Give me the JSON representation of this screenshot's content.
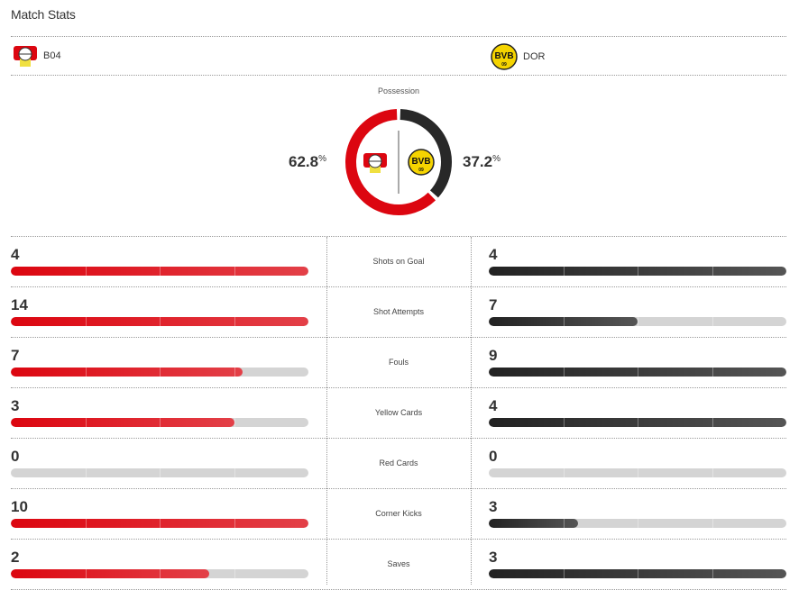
{
  "header": {
    "title": "Match Stats"
  },
  "teams": {
    "home": {
      "abbr": "B04",
      "logo_icon": "bayer-leverkusen-crest",
      "color": "#dc0610"
    },
    "away": {
      "abbr": "DOR",
      "logo_icon": "bvb-crest",
      "color": "#222222",
      "logo_text": "BVB 09"
    }
  },
  "possession": {
    "label": "Possession",
    "home": 62.8,
    "away": 37.2,
    "home_text": "62.8",
    "away_text": "37.2",
    "unit": "%"
  },
  "stats": [
    {
      "label": "Shots on Goal",
      "home": 4,
      "away": 4
    },
    {
      "label": "Shot Attempts",
      "home": 14,
      "away": 7
    },
    {
      "label": "Fouls",
      "home": 7,
      "away": 9
    },
    {
      "label": "Yellow Cards",
      "home": 3,
      "away": 4
    },
    {
      "label": "Red Cards",
      "home": 0,
      "away": 0
    },
    {
      "label": "Corner Kicks",
      "home": 10,
      "away": 3
    },
    {
      "label": "Saves",
      "home": 2,
      "away": 3
    }
  ]
}
